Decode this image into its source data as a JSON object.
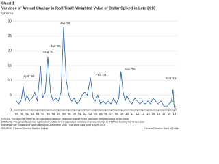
{
  "chart_data": {
    "type": "line",
    "label": "Chart 1",
    "title": "Variance of Annual Change in Real Trade Weighted Value of Dollar Spiked in Late 2018",
    "y_label": "Variance",
    "xlim": [
      1988.5,
      2019.6
    ],
    "xticks": [
      {
        "value": 1989,
        "label": "'89"
      },
      {
        "value": 1990,
        "label": "'90"
      },
      {
        "value": 1991,
        "label": "'91"
      },
      {
        "value": 1992,
        "label": "'92"
      },
      {
        "value": 1993,
        "label": "'93"
      },
      {
        "value": 1994,
        "label": "'94"
      },
      {
        "value": 1995,
        "label": "'95"
      },
      {
        "value": 1996,
        "label": "'96"
      },
      {
        "value": 1997,
        "label": "'97"
      },
      {
        "value": 1998,
        "label": "'98"
      },
      {
        "value": 1999,
        "label": "'99"
      },
      {
        "value": 2000,
        "label": "'00"
      },
      {
        "value": 2001,
        "label": "'01"
      },
      {
        "value": 2002,
        "label": "'02"
      },
      {
        "value": 2003,
        "label": "'03"
      },
      {
        "value": 2004,
        "label": "'04"
      },
      {
        "value": 2005,
        "label": "'05"
      },
      {
        "value": 2006,
        "label": "'06"
      },
      {
        "value": 2007,
        "label": "'07"
      },
      {
        "value": 2008,
        "label": "'08"
      },
      {
        "value": 2009,
        "label": "'09"
      },
      {
        "value": 2010,
        "label": "'10"
      },
      {
        "value": 2011,
        "label": "'11"
      },
      {
        "value": 2012,
        "label": "'12"
      },
      {
        "value": 2013,
        "label": "'13"
      },
      {
        "value": 2014,
        "label": "'14"
      },
      {
        "value": 2015,
        "label": "'15"
      },
      {
        "value": 2016,
        "label": "'16"
      },
      {
        "value": 2017,
        "label": "'17"
      },
      {
        "value": 2018,
        "label": "'18"
      },
      {
        "value": 2019,
        "label": "'19"
      }
    ],
    "ylim": [
      0,
      30
    ],
    "yticks": [
      0,
      5,
      10,
      15,
      20,
      25,
      30
    ],
    "series": [
      {
        "color": "#1f5aa6",
        "x": [
          1989,
          1989.5,
          1990,
          1990.3,
          1990.7,
          1991,
          1991.5,
          1992,
          1992.5,
          1993,
          1993.6,
          1994,
          1994.5,
          1995,
          1995.5,
          1996,
          1996.5,
          1997,
          1997.5,
          1998,
          1998.5,
          1999,
          1999.5,
          2000,
          2000.5,
          2001,
          2001.5,
          2002,
          2002.5,
          2003.1,
          2003.6,
          2004,
          2004.5,
          2005,
          2005.5,
          2006,
          2006.5,
          2007,
          2007.5,
          2008,
          2008.5,
          2008.9,
          2009.3,
          2009.7,
          2010,
          2010.5,
          2011,
          2011.5,
          2012,
          2012.5,
          2013,
          2013.5,
          2014,
          2014.5,
          2015,
          2015.5,
          2016,
          2016.5,
          2017,
          2017.5,
          2018,
          2018.5,
          2018.8,
          2019,
          2019.3
        ],
        "values": [
          3,
          2,
          4,
          8,
          3,
          5,
          3,
          4,
          6,
          3,
          15,
          4,
          6,
          18,
          6,
          3,
          4,
          3,
          6,
          28,
          10,
          5,
          3,
          4,
          2,
          3,
          5,
          6,
          5,
          11,
          4,
          3,
          5,
          2,
          3,
          2,
          3,
          2,
          4,
          2,
          4,
          13,
          6,
          3,
          5,
          3,
          2,
          4,
          3,
          2,
          3,
          2,
          3,
          2,
          4,
          3,
          2,
          3,
          1.5,
          1,
          2,
          3,
          7,
          1,
          0.5
        ]
      },
      {
        "color": "#7ab648",
        "x": [
          2018,
          2018.5,
          2018.8,
          2019,
          2019.3
        ],
        "values": [
          2,
          2.5,
          3,
          2,
          1
        ]
      }
    ],
    "annotations": [
      "April '90",
      "Aug '93",
      "Jan '95",
      "Jan '98",
      "Feb '03",
      "Nov '08",
      "Oct '18"
    ],
    "notes": [
      "NOTES: The blue line refers to the calculated variance of annual change in the real trade weighted value of the dollar",
      "(RTWVD). The green line (lower right corner) refers to the calculated variance of annual change in RTWVD, holding the Venezuelan",
      "exchange rate constant for data values post-December 2017. The latest data point is April 2019."
    ],
    "source": "SOURCE: Federal Reserve Bank of Dallas.",
    "credit": "Federal Reserve Bank of Dallas"
  }
}
